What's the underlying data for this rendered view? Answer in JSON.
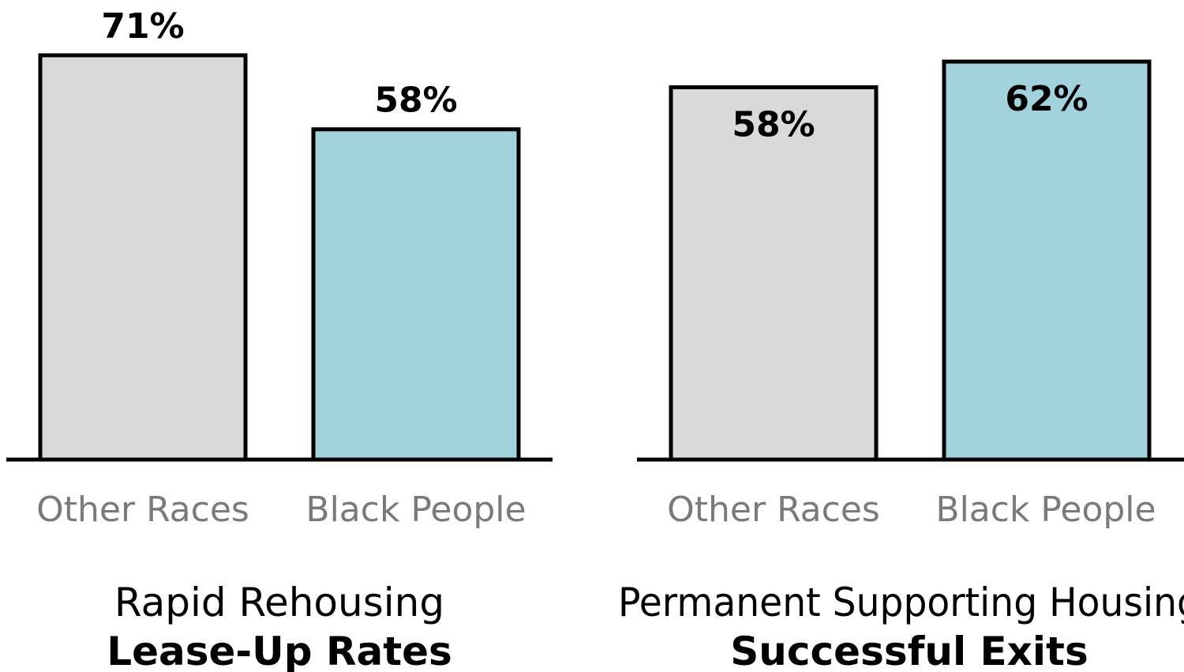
{
  "colors": {
    "other": "#d9d9d9",
    "black": "#a2d2dc",
    "outline": "#000000",
    "category_text": "#7a7a7a"
  },
  "chart_data": [
    {
      "type": "bar",
      "title": "Rapid Rehousing",
      "subtitle": "Lease-Up Rates",
      "categories": [
        "Other Races",
        "Black People"
      ],
      "values": [
        71,
        58
      ],
      "data_labels": [
        "71%",
        "58%"
      ],
      "ylim": [
        0,
        71
      ],
      "grid": false
    },
    {
      "type": "bar",
      "title": "Permanent Supporting Housing",
      "subtitle": "Successful Exits",
      "categories": [
        "Other Races",
        "Black People"
      ],
      "values": [
        58,
        62
      ],
      "data_labels": [
        "58%",
        "62%"
      ],
      "ylim": [
        0,
        62
      ],
      "grid": false
    }
  ]
}
